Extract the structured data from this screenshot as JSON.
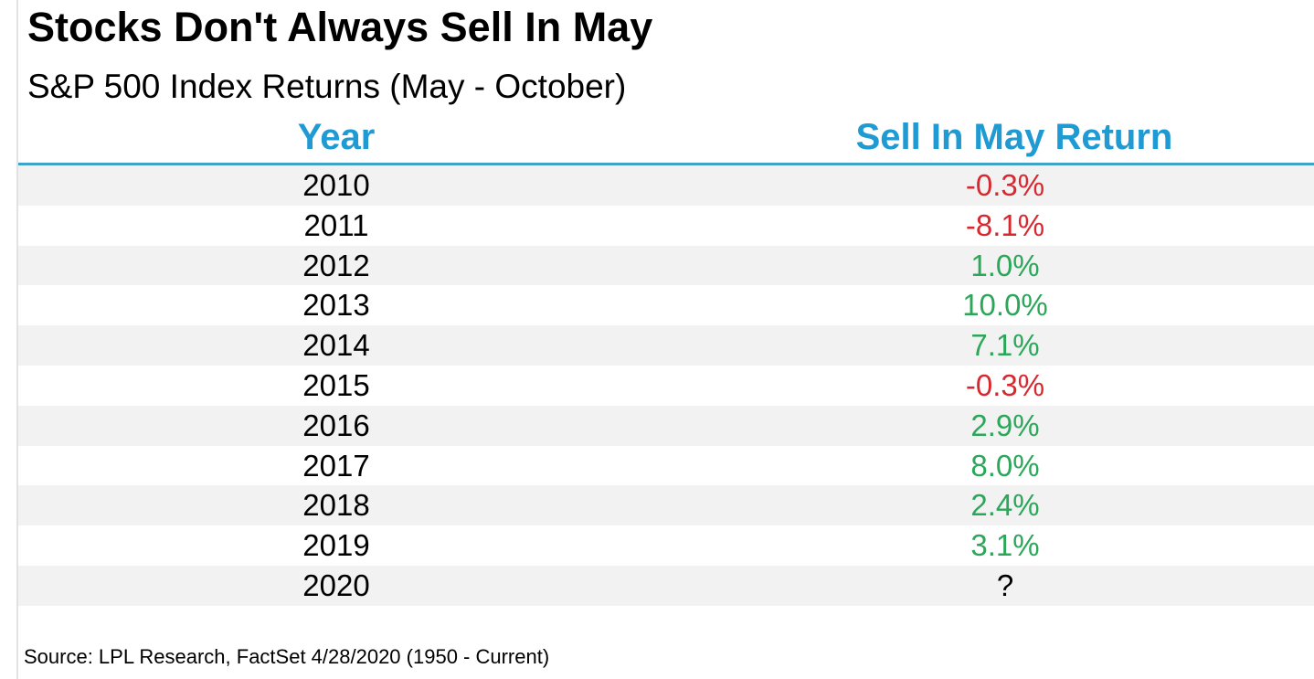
{
  "chart_data": {
    "type": "table",
    "title": "Stocks Don't Always Sell In May",
    "subtitle": "S&P 500 Index Returns (May - October)",
    "columns": [
      "Year",
      "Sell In May Return"
    ],
    "rows": [
      {
        "year": "2010",
        "return": "-0.3%",
        "value": -0.3,
        "color": "#d7282f"
      },
      {
        "year": "2011",
        "return": "-8.1%",
        "value": -8.1,
        "color": "#d7282f"
      },
      {
        "year": "2012",
        "return": "1.0%",
        "value": 1.0,
        "color": "#2ca75a"
      },
      {
        "year": "2013",
        "return": "10.0%",
        "value": 10.0,
        "color": "#2ca75a"
      },
      {
        "year": "2014",
        "return": "7.1%",
        "value": 7.1,
        "color": "#2ca75a"
      },
      {
        "year": "2015",
        "return": "-0.3%",
        "value": -0.3,
        "color": "#d7282f"
      },
      {
        "year": "2016",
        "return": "2.9%",
        "value": 2.9,
        "color": "#2ca75a"
      },
      {
        "year": "2017",
        "return": "8.0%",
        "value": 8.0,
        "color": "#2ca75a"
      },
      {
        "year": "2018",
        "return": "2.4%",
        "value": 2.4,
        "color": "#2ca75a"
      },
      {
        "year": "2019",
        "return": "3.1%",
        "value": 3.1,
        "color": "#2ca75a"
      },
      {
        "year": "2020",
        "return": "?",
        "value": null,
        "color": "#000000"
      }
    ],
    "source": "Source: LPL Research, FactSet 4/28/2020 (1950 - Current)",
    "colors": {
      "header": "#1f9ad3",
      "header_rule": "#3fa3c9",
      "negative": "#d7282f",
      "positive": "#2ca75a",
      "row_shade": "#f2f2f2"
    }
  }
}
